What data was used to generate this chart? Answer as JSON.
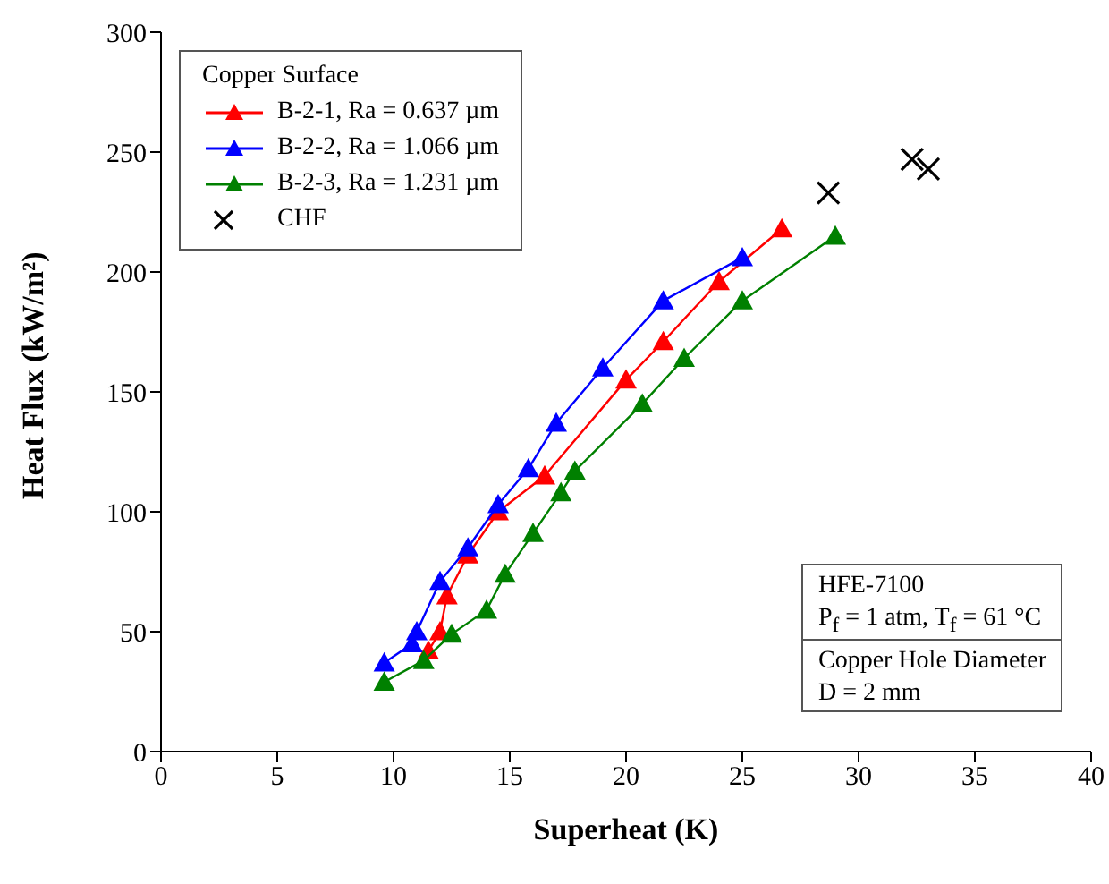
{
  "chart_data": {
    "type": "line",
    "xlabel": "Superheat (K)",
    "ylabel": "Heat Flux (kW/m²)",
    "legend_title": "Copper Surface",
    "legend": "top left",
    "grid": false,
    "marker": "triangle",
    "line_style": "solid",
    "xlim": [
      0,
      40
    ],
    "xticks": [
      0,
      5,
      10,
      15,
      20,
      25,
      30,
      35,
      40
    ],
    "ylim": [
      0,
      300
    ],
    "yticks": [
      0,
      50,
      100,
      150,
      200,
      250,
      300
    ],
    "annotations": [
      "HFE-7100",
      "P$_{f}$ = 1 atm, T$_{f}$ = 61 °C",
      "Copper Hole Diameter",
      "D = 2 mm"
    ],
    "series": [
      {
        "name": "B-2-1, Ra = 0.637 µm",
        "color": "#ff0000",
        "x": [
          11.5,
          12,
          12.3,
          13.2,
          14.5,
          16.5,
          20,
          21.6,
          24,
          26.7
        ],
        "values": [
          42,
          50,
          65,
          82,
          100,
          115,
          155,
          171,
          196,
          218
        ]
      },
      {
        "name": "B-2-2, Ra = 1.066 µm",
        "color": "#0000ff",
        "x": [
          9.6,
          10.8,
          11,
          12,
          13.2,
          14.5,
          15.8,
          17,
          19,
          21.6,
          25
        ],
        "values": [
          37,
          45,
          50,
          71,
          85,
          103,
          118,
          137,
          160,
          188,
          206
        ]
      },
      {
        "name": "B-2-3, Ra = 1.231 µm",
        "color": "#008000",
        "x": [
          9.6,
          11.3,
          12.5,
          14,
          14.8,
          16,
          17.2,
          17.8,
          20.7,
          22.5,
          25,
          29
        ],
        "values": [
          29,
          38,
          49,
          59,
          74,
          91,
          108,
          117,
          145,
          164,
          188,
          215
        ]
      },
      {
        "name": "CHF",
        "type": "scatter",
        "marker": "cross",
        "color": "#000000",
        "x": [
          32.3,
          28.7,
          33
        ],
        "values": [
          247,
          233,
          243
        ]
      }
    ]
  }
}
